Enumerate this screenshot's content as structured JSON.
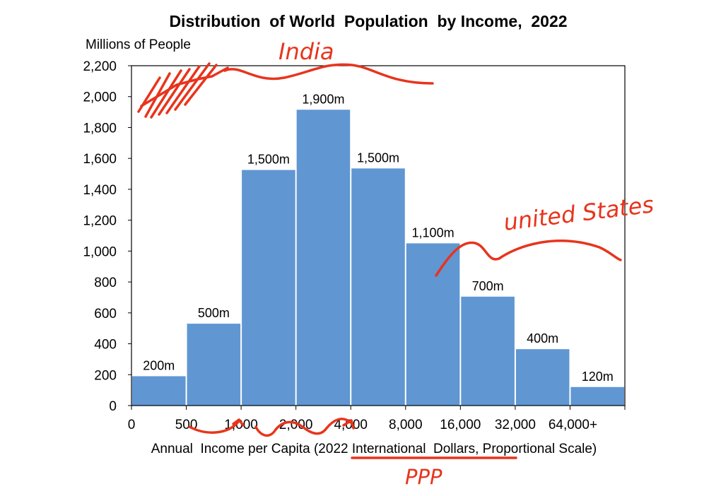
{
  "chart_data": {
    "type": "bar",
    "title": "Distribution  of World  Population  by Income,  2022",
    "ylabel": "Millions of People",
    "xlabel": "Annual  Income per Capita (2022 International  Dollars, Proportional Scale)",
    "ylim": [
      0,
      2200
    ],
    "yticks": [
      "0",
      "200",
      "400",
      "600",
      "800",
      "1,000",
      "1,200",
      "1,400",
      "1,600",
      "1,800",
      "2,000",
      "2,200"
    ],
    "xticks": [
      "0",
      "500",
      "1,000",
      "2,000",
      "4,000",
      "8,000",
      "16,000",
      "32,000",
      "64,000+"
    ],
    "values": [
      190,
      530,
      1525,
      1915,
      1535,
      1050,
      705,
      365,
      120
    ],
    "bar_labels": [
      "200m",
      "500m",
      "1,500m",
      "1,900m",
      "1,500m",
      "1,100m",
      "700m",
      "400m",
      "120m"
    ],
    "bar_color": "#6096d2",
    "grid": false
  },
  "annotations": {
    "india": "India",
    "united_states": "united States",
    "ppp": "PPP",
    "ink_color": "#e8341c"
  }
}
